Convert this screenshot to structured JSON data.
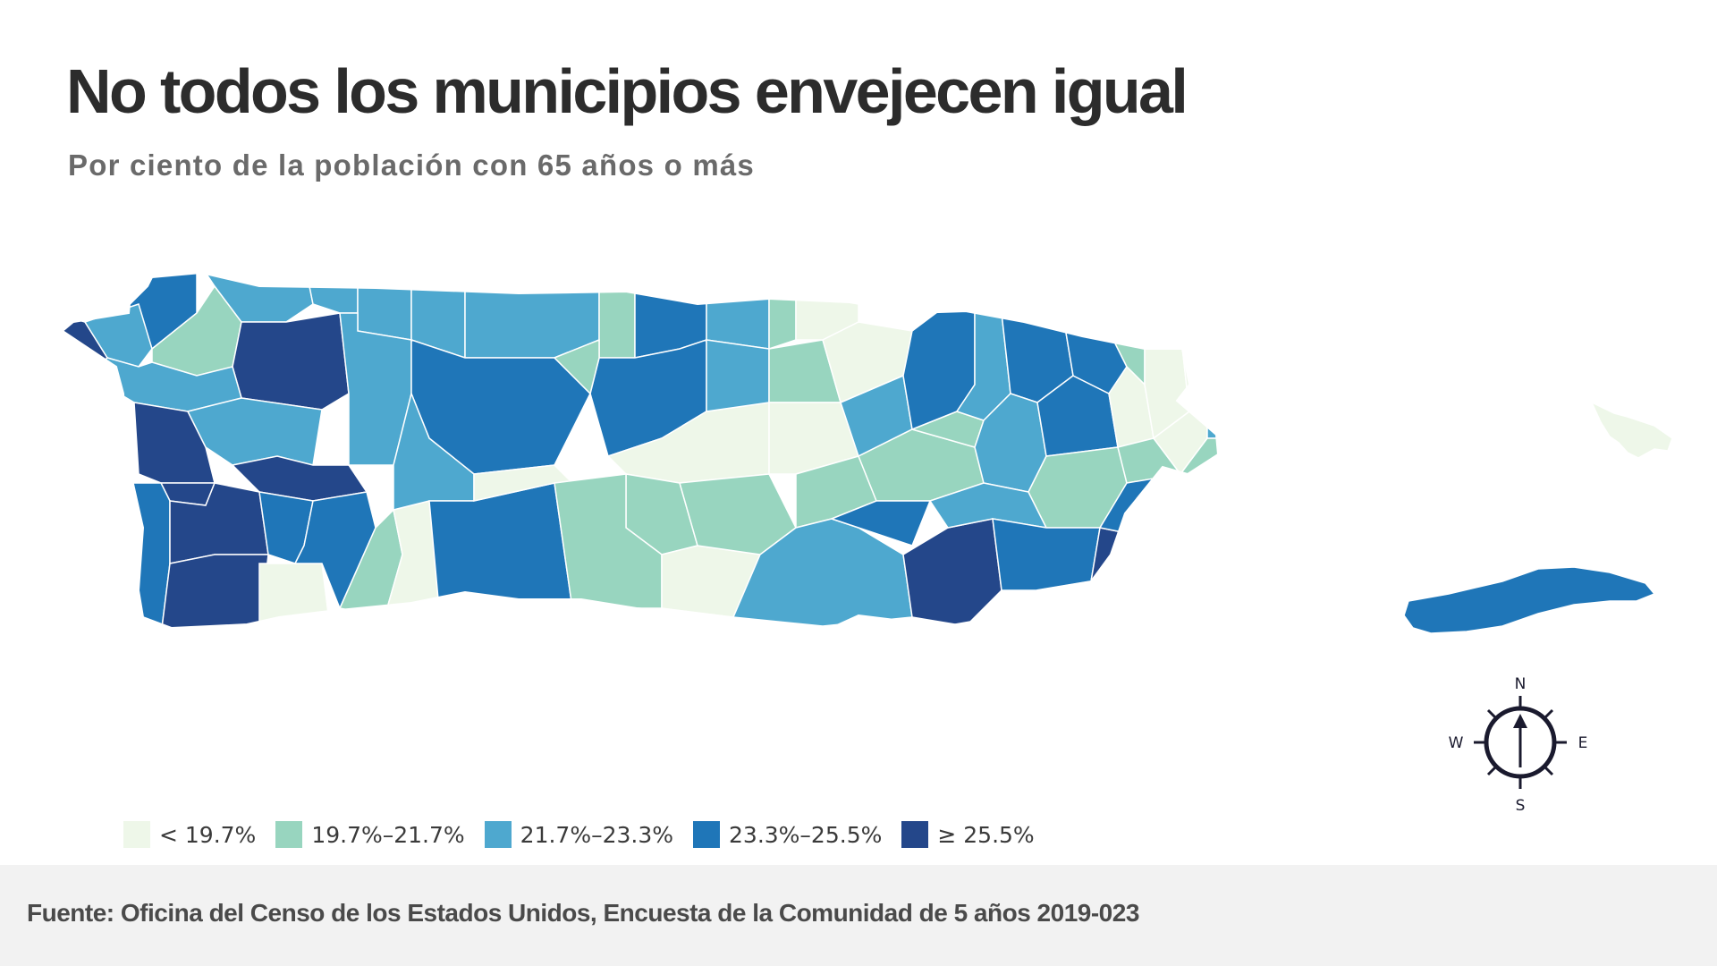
{
  "title": "No todos los municipios envejecen igual",
  "subtitle": "Por ciento de la población con 65 años o más",
  "legend": {
    "items": [
      {
        "label": "< 19.7%",
        "color": "#eef7e9"
      },
      {
        "label": "19.7%–21.7%",
        "color": "#98d5bf"
      },
      {
        "label": "21.7%–23.3%",
        "color": "#4ea8cf"
      },
      {
        "label": "23.3%–25.5%",
        "color": "#1f76b8"
      },
      {
        "label": "≥ 25.5%",
        "color": "#24478a"
      }
    ]
  },
  "compass": {
    "north": "N",
    "south": "S",
    "east": "E",
    "west": "W",
    "icon": "compass-rose-icon"
  },
  "footer": {
    "source": "Fuente: Oficina del Censo de los Estados Unidos, Encuesta de la Comunidad de 5 años 2019-023"
  },
  "colors": {
    "background": "#ffffff",
    "footer_background": "#f2f2f2",
    "border": "#ffffff"
  }
}
